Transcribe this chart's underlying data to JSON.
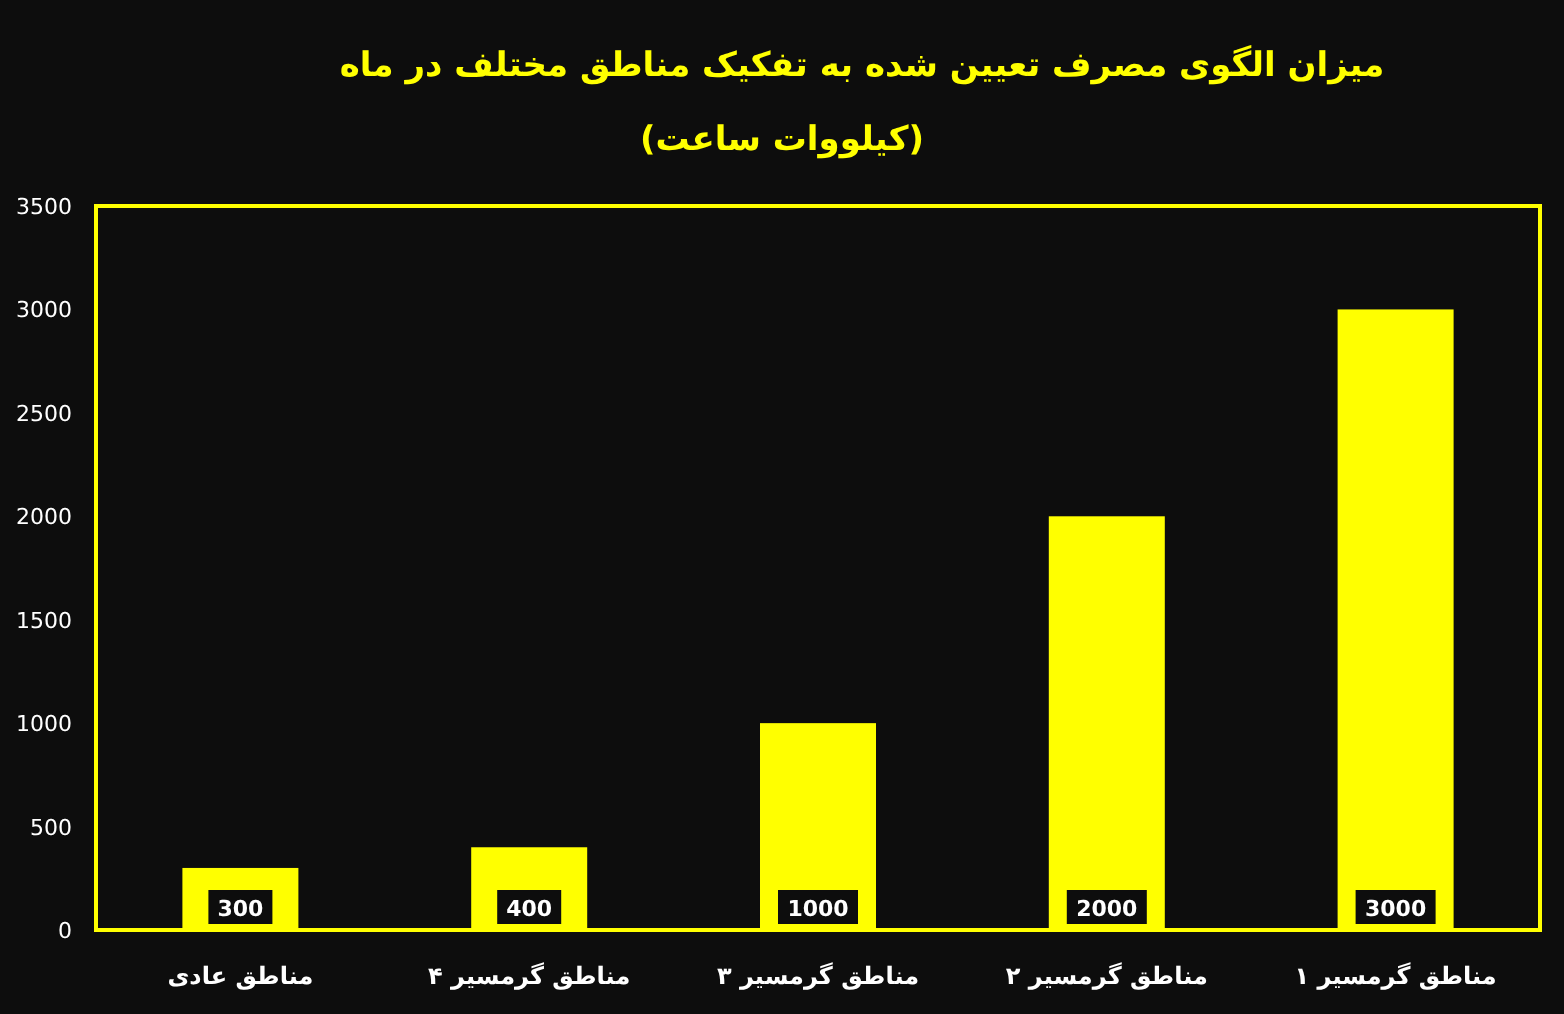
{
  "chart_data": {
    "type": "bar",
    "title": "میزان الگوی مصرف تعیین شده به تفکیک مناطق مختلف در ماه",
    "subtitle": "(کیلووات ساعت)",
    "categories": [
      "مناطق عادی",
      "مناطق گرمسیر ۴",
      "مناطق گرمسیر ۳",
      "مناطق گرمسیر ۲",
      "مناطق گرمسیر ۱"
    ],
    "values": [
      300,
      400,
      1000,
      2000,
      3000
    ],
    "color": "#ffff00",
    "ylim": [
      0,
      3500
    ],
    "yticks": [
      0,
      500,
      1000,
      1500,
      2000,
      2500,
      3000,
      3500
    ],
    "data_labels": true,
    "grid": false
  }
}
